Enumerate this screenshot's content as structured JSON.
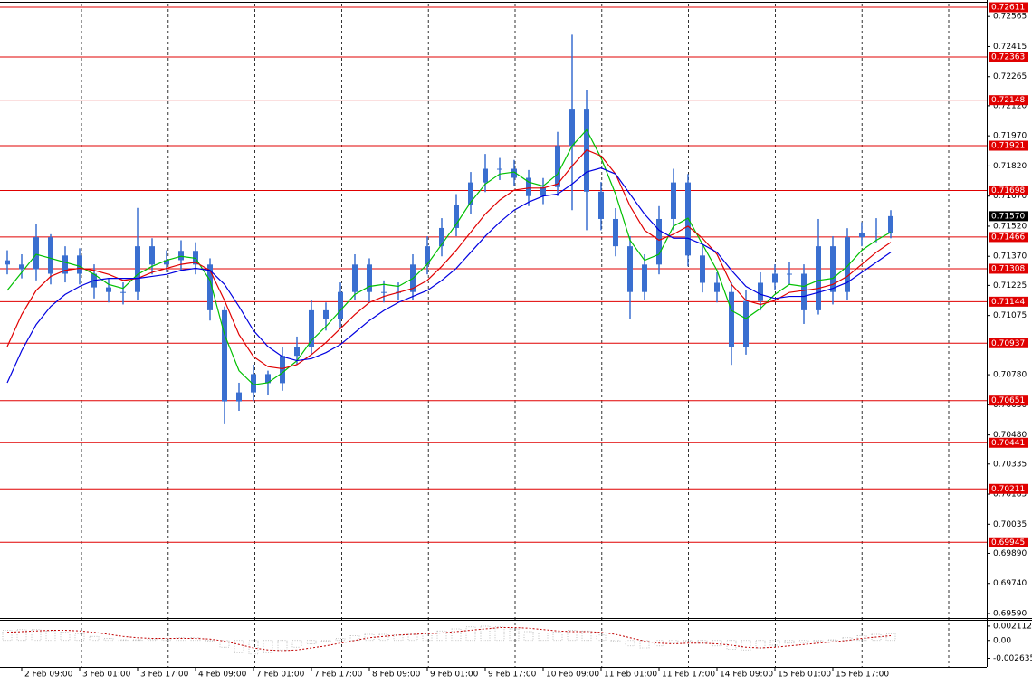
{
  "chart_data": [
    {
      "type": "candlestick",
      "categories": [
        null,
        "2 Feb 09:00",
        null,
        null,
        null,
        "3 Feb 01:00",
        null,
        null,
        null,
        "3 Feb 17:00",
        null,
        null,
        null,
        "4 Feb 09:00",
        null,
        null,
        null,
        "7 Feb 01:00",
        null,
        null,
        null,
        "7 Feb 17:00",
        null,
        null,
        null,
        "8 Feb 09:00",
        null,
        null,
        null,
        "9 Feb 01:00",
        null,
        null,
        null,
        "9 Feb 17:00",
        null,
        null,
        null,
        "10 Feb 09:00",
        null,
        null,
        null,
        "11 Feb 01:00",
        null,
        null,
        null,
        "11 Feb 17:00",
        null,
        null,
        null,
        "14 Feb 09:00",
        null,
        null,
        null,
        "15 Feb 01:00",
        null,
        null,
        null,
        "15 Feb 17:00",
        null,
        null,
        null,
        null
      ],
      "open": [
        0.7135,
        0.71329,
        0.71306,
        0.71465,
        0.71283,
        0.71374,
        0.71283,
        0.71215,
        0.71192,
        0.71192,
        0.7142,
        0.71329,
        0.71351,
        0.71397,
        0.71329,
        0.71101,
        0.70647,
        0.70692,
        0.70783,
        0.70738,
        0.70874,
        0.7092,
        0.71101,
        0.71056,
        0.71192,
        0.71329,
        0.71192,
        0.71192,
        0.71192,
        0.71329,
        0.7142,
        0.71511,
        0.71624,
        0.71738,
        0.71806,
        0.71806,
        0.71761,
        0.7167,
        0.71715,
        0.7192,
        0.72101,
        0.71692,
        0.71556,
        0.7142,
        0.71192,
        0.71329,
        0.71556,
        0.71738,
        0.71374,
        0.71238,
        0.71192,
        0.7092,
        0.71147,
        0.71238,
        0.71283,
        0.71283,
        0.71101,
        0.7142,
        0.71192,
        0.71465,
        0.71488,
        0.71488
      ],
      "high": [
        0.714,
        0.7138,
        0.7153,
        0.7148,
        0.7142,
        0.7141,
        0.7133,
        0.7126,
        0.7124,
        0.71611,
        0.7146,
        0.714,
        0.7145,
        0.7144,
        0.7136,
        0.7112,
        0.7074,
        0.7083,
        0.708,
        0.7092,
        0.7097,
        0.7115,
        0.7114,
        0.7124,
        0.7138,
        0.7136,
        0.7125,
        0.7124,
        0.7138,
        0.7147,
        0.7156,
        0.7168,
        0.7179,
        0.7188,
        0.7186,
        0.7185,
        0.718,
        0.7176,
        0.7199,
        0.72474,
        0.722,
        0.7174,
        0.7161,
        0.7147,
        0.7138,
        0.7162,
        0.71806,
        0.7178,
        0.7142,
        0.7129,
        0.7124,
        0.712,
        0.7129,
        0.7133,
        0.7134,
        0.7133,
        0.71556,
        0.7147,
        0.7151,
        0.7154,
        0.7156,
        0.716
      ],
      "low": [
        0.7128,
        0.7126,
        0.7125,
        0.7123,
        0.7124,
        0.7123,
        0.7116,
        0.7114,
        0.7113,
        0.7115,
        0.7128,
        0.7129,
        0.713,
        0.7128,
        0.7105,
        0.70533,
        0.706,
        0.7065,
        0.7068,
        0.707,
        0.7083,
        0.7088,
        0.71,
        0.7101,
        0.7115,
        0.7114,
        0.7114,
        0.7115,
        0.7115,
        0.7128,
        0.7137,
        0.7147,
        0.7158,
        0.7169,
        0.7175,
        0.7172,
        0.7162,
        0.7163,
        0.7167,
        0.716,
        0.715,
        0.715,
        0.7137,
        0.71056,
        0.7115,
        0.7128,
        0.715,
        0.7132,
        0.7119,
        0.7114,
        0.70829,
        0.7088,
        0.711,
        0.712,
        0.7123,
        0.71033,
        0.7108,
        0.7113,
        0.7115,
        0.7142,
        0.7144,
        0.7146
      ],
      "close": [
        0.71329,
        0.71306,
        0.71465,
        0.71283,
        0.71374,
        0.71283,
        0.71215,
        0.71192,
        0.71192,
        0.7142,
        0.71329,
        0.71351,
        0.71397,
        0.71329,
        0.71101,
        0.70647,
        0.70692,
        0.70783,
        0.70738,
        0.70874,
        0.7092,
        0.71101,
        0.71056,
        0.71192,
        0.71329,
        0.71192,
        0.71192,
        0.71192,
        0.71329,
        0.7142,
        0.71511,
        0.71624,
        0.71738,
        0.71806,
        0.71806,
        0.71761,
        0.7167,
        0.71715,
        0.7192,
        0.72101,
        0.71692,
        0.71556,
        0.7142,
        0.71192,
        0.71329,
        0.71556,
        0.71738,
        0.71374,
        0.71238,
        0.71192,
        0.7092,
        0.71147,
        0.71238,
        0.71283,
        0.71283,
        0.71101,
        0.7142,
        0.71192,
        0.71465,
        0.71488,
        0.71488,
        0.7157
      ],
      "color": "#3a6fd0",
      "series": [
        {
          "color": "#00c000",
          "values": [
            0.712,
            0.7129,
            0.7138,
            0.7136,
            0.7134,
            0.7132,
            0.7128,
            0.7123,
            0.7121,
            0.7128,
            0.7132,
            0.7135,
            0.7137,
            0.7136,
            0.7125,
            0.7098,
            0.708,
            0.7073,
            0.7074,
            0.7079,
            0.7085,
            0.7095,
            0.7102,
            0.711,
            0.7118,
            0.7122,
            0.7123,
            0.7122,
            0.7126,
            0.7133,
            0.7143,
            0.7153,
            0.7164,
            0.7173,
            0.7178,
            0.7179,
            0.7174,
            0.7172,
            0.7178,
            0.7192,
            0.72,
            0.7186,
            0.7168,
            0.7145,
            0.7135,
            0.7138,
            0.7152,
            0.7156,
            0.7143,
            0.713,
            0.711,
            0.7106,
            0.7111,
            0.7118,
            0.7123,
            0.7122,
            0.7125,
            0.7126,
            0.7132,
            0.714,
            0.7145,
            0.7149
          ]
        },
        {
          "color": "#e00000",
          "values": [
            0.7092,
            0.7108,
            0.712,
            0.7127,
            0.713,
            0.7131,
            0.713,
            0.7128,
            0.7125,
            0.7126,
            0.7129,
            0.7131,
            0.7133,
            0.7134,
            0.713,
            0.7115,
            0.7098,
            0.7087,
            0.7082,
            0.7081,
            0.7083,
            0.7088,
            0.7094,
            0.7101,
            0.7108,
            0.7114,
            0.7117,
            0.7119,
            0.7121,
            0.7125,
            0.7132,
            0.714,
            0.7149,
            0.7158,
            0.7165,
            0.717,
            0.7171,
            0.7171,
            0.7173,
            0.7182,
            0.719,
            0.7187,
            0.7178,
            0.7162,
            0.715,
            0.7145,
            0.7148,
            0.7152,
            0.7146,
            0.7138,
            0.7123,
            0.7115,
            0.7113,
            0.7115,
            0.7119,
            0.712,
            0.7121,
            0.7123,
            0.7127,
            0.7133,
            0.7139,
            0.7144
          ]
        },
        {
          "color": "#0000e0",
          "values": [
            0.7074,
            0.709,
            0.7103,
            0.7112,
            0.7118,
            0.7122,
            0.7125,
            0.7126,
            0.7126,
            0.7126,
            0.7127,
            0.7128,
            0.713,
            0.7131,
            0.713,
            0.7123,
            0.7112,
            0.71,
            0.7092,
            0.7087,
            0.7085,
            0.7086,
            0.7089,
            0.7093,
            0.7099,
            0.7105,
            0.711,
            0.7114,
            0.7117,
            0.712,
            0.7125,
            0.7131,
            0.7139,
            0.7147,
            0.7154,
            0.716,
            0.7164,
            0.7167,
            0.7168,
            0.7173,
            0.7179,
            0.7181,
            0.7178,
            0.7168,
            0.7158,
            0.715,
            0.7146,
            0.7146,
            0.7143,
            0.7139,
            0.713,
            0.7122,
            0.7118,
            0.7116,
            0.7117,
            0.7117,
            0.7119,
            0.7121,
            0.7124,
            0.7129,
            0.7134,
            0.7139
          ]
        }
      ],
      "levels": {
        "color": "#e00000",
        "values": [
          0.72611,
          0.72363,
          0.72148,
          0.71921,
          0.71698,
          0.71466,
          0.71308,
          0.71144,
          0.70937,
          0.70651,
          0.70441,
          0.70211,
          0.69945
        ]
      },
      "last_price": {
        "value": 0.7157,
        "label": "0.71570"
      },
      "ylim": [
        0.69572,
        0.72629
      ],
      "yticks": [
        0.72565,
        0.72415,
        0.72265,
        {
          "value": 0.7212,
          "label": "0.72120"
        },
        {
          "value": 0.7197,
          "label": "0.71970"
        },
        {
          "value": 0.7182,
          "label": "0.71820"
        },
        {
          "value": 0.7167,
          "label": "0.71670"
        },
        {
          "value": 0.7152,
          "label": "0.71520"
        },
        {
          "value": 0.7137,
          "label": "0.71370"
        },
        0.71225,
        0.71075,
        {
          "value": 0.7078,
          "label": "0.70780"
        },
        {
          "value": 0.7063,
          "label": "0.70630"
        },
        {
          "value": 0.7048,
          "label": "0.70480"
        },
        0.70335,
        0.70185,
        0.70035,
        {
          "value": 0.6989,
          "label": "0.69890"
        },
        {
          "value": 0.6974,
          "label": "0.69740"
        },
        {
          "value": 0.6959,
          "label": "0.69590"
        }
      ]
    },
    {
      "type": "bar",
      "color": "#b0b0b0",
      "values": [
        0.0015,
        0.0016,
        0.0016,
        0.0014,
        0.0012,
        0.001,
        0.0006,
        0.0003,
        0.0001,
        0.0001,
        0.0002,
        0.0003,
        0.0004,
        0.0004,
        0,
        -0.001,
        -0.0018,
        -0.002,
        -0.0018,
        -0.0014,
        -0.001,
        -0.0005,
        -0.0001,
        0.0003,
        0.0007,
        0.0009,
        0.0009,
        0.0008,
        0.0009,
        0.0011,
        0.0014,
        0.0017,
        0.002,
        0.0021,
        0.002,
        0.0017,
        0.0013,
        0.0011,
        0.0012,
        0.0015,
        0.0014,
        0.0008,
        0,
        -0.0008,
        -0.0011,
        -0.0008,
        -0.0003,
        0,
        -0.0004,
        -0.0008,
        -0.0013,
        -0.0014,
        -0.0011,
        -0.0007,
        -0.0004,
        -0.0003,
        0,
        0.0001,
        0.0004,
        0.0007,
        0.0009,
        0.001
      ],
      "signal": {
        "color": "#c00000",
        "values": [
          0.0012,
          0.0013,
          0.0014,
          0.0015,
          0.0015,
          0.0014,
          0.0012,
          0.0009,
          0.0006,
          0.0004,
          0.0003,
          0.0003,
          0.0003,
          0.0003,
          0.0002,
          -0.0001,
          -0.0006,
          -0.0011,
          -0.0014,
          -0.0015,
          -0.0014,
          -0.0011,
          -0.0008,
          -0.0004,
          0,
          0.0004,
          0.0006,
          0.0008,
          0.0009,
          0.001,
          0.0011,
          0.0013,
          0.0015,
          0.0017,
          0.0019,
          0.0019,
          0.0018,
          0.0016,
          0.0014,
          0.0013,
          0.0013,
          0.0012,
          0.0009,
          0.0004,
          -0.0001,
          -0.0004,
          -0.0005,
          -0.0004,
          -0.0004,
          -0.0005,
          -0.0007,
          -0.001,
          -0.0011,
          -0.001,
          -0.0008,
          -0.0006,
          -0.0004,
          -0.0002,
          0,
          0.0003,
          0.0005,
          0.0007
        ]
      },
      "ylim": [
        -0.0039,
        0.0029
      ],
      "yticks": [
        0.002112,
        {
          "value": 0,
          "label": "0.00"
        },
        -0.002635
      ]
    }
  ]
}
